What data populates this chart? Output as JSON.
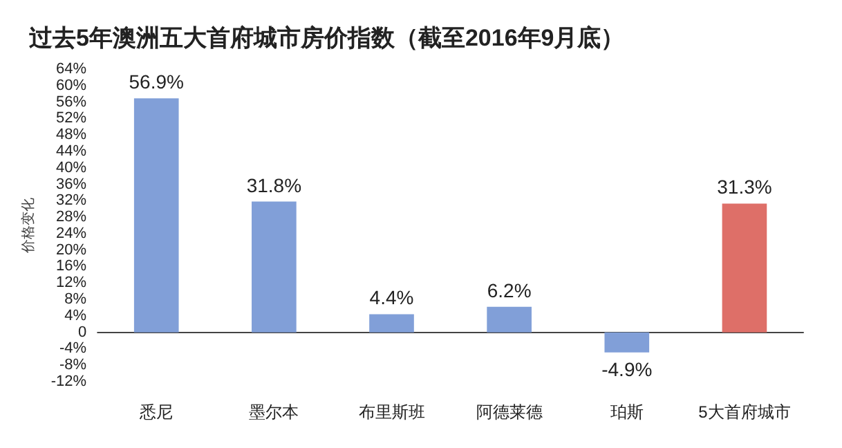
{
  "chart_data": {
    "type": "bar",
    "title": "过去5年澳洲五大首府城市房价指数（截至2016年9月底）",
    "ylabel": "价格变化",
    "categories": [
      "悉尼",
      "墨尔本",
      "布里斯班",
      "阿德莱德",
      "珀斯",
      "5大首府城市"
    ],
    "values": [
      56.9,
      31.8,
      4.4,
      6.2,
      -4.9,
      31.3
    ],
    "colors": [
      "#819fd8",
      "#819fd8",
      "#819fd8",
      "#819fd8",
      "#819fd8",
      "#de6f68"
    ],
    "value_labels": [
      "56.9%",
      "31.8%",
      "4.4%",
      "6.2%",
      "-4.9%",
      "31.3%"
    ],
    "ylim": [
      -12,
      64
    ],
    "yticks": [
      {
        "value": -12,
        "label": "-12%"
      },
      {
        "value": -8,
        "label": "-8%"
      },
      {
        "value": -4,
        "label": "-4%"
      },
      {
        "value": 0,
        "label": "0"
      },
      {
        "value": 4,
        "label": "4%"
      },
      {
        "value": 8,
        "label": "8%"
      },
      {
        "value": 12,
        "label": "12%"
      },
      {
        "value": 16,
        "label": "16%"
      },
      {
        "value": 20,
        "label": "20%"
      },
      {
        "value": 24,
        "label": "24%"
      },
      {
        "value": 28,
        "label": "28%"
      },
      {
        "value": 32,
        "label": "32%"
      },
      {
        "value": 36,
        "label": "36%"
      },
      {
        "value": 40,
        "label": "40%"
      },
      {
        "value": 44,
        "label": "44%"
      },
      {
        "value": 48,
        "label": "48%"
      },
      {
        "value": 52,
        "label": "52%"
      },
      {
        "value": 56,
        "label": "56%"
      },
      {
        "value": 60,
        "label": "60%"
      },
      {
        "value": 64,
        "label": "64%"
      }
    ],
    "xlabel": null
  }
}
